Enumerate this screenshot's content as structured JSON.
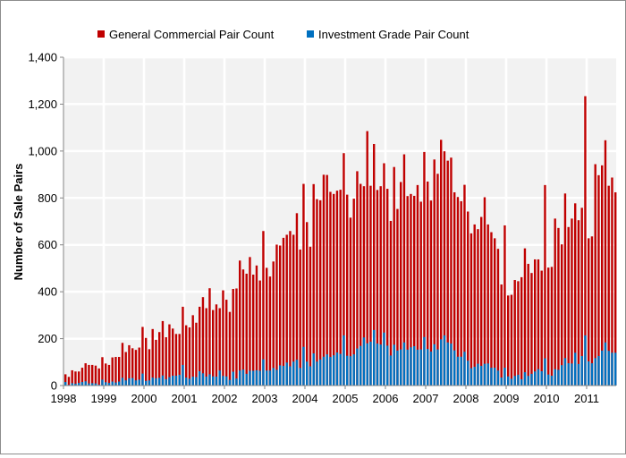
{
  "chart_data": {
    "type": "bar",
    "stacking": "overlay",
    "title": "",
    "xlabel": "",
    "ylabel": "Number of Sale Pairs",
    "ylim": [
      0,
      1400
    ],
    "yticks": [
      0,
      200,
      400,
      600,
      800,
      1000,
      1200,
      1400
    ],
    "ytick_labels": [
      "0",
      "200",
      "400",
      "600",
      "800",
      "1,000",
      "1,200",
      "1,400"
    ],
    "xtick_labels": [
      "1998",
      "1999",
      "2000",
      "2001",
      "2002",
      "2003",
      "2004",
      "2005",
      "2006",
      "2007",
      "2008",
      "2009",
      "2010",
      "2011"
    ],
    "x_start": "1998-01",
    "x_frequency": "monthly",
    "grid": true,
    "legend_position": "top",
    "colors": {
      "general": "#c00000",
      "investment": "#0070c0",
      "plot_bg": "#f2f2f2"
    },
    "series": [
      {
        "name": "General Commercial Pair Count",
        "values": [
          48,
          37,
          65,
          60,
          60,
          76,
          95,
          88,
          88,
          85,
          73,
          121,
          94,
          88,
          120,
          122,
          122,
          182,
          143,
          172,
          159,
          152,
          162,
          250,
          203,
          155,
          241,
          195,
          228,
          275,
          206,
          261,
          243,
          220,
          220,
          336,
          257,
          248,
          300,
          268,
          336,
          377,
          330,
          415,
          322,
          346,
          330,
          406,
          366,
          314,
          412,
          414,
          533,
          495,
          477,
          548,
          473,
          512,
          448,
          659,
          502,
          465,
          529,
          601,
          597,
          630,
          643,
          659,
          643,
          735,
          580,
          860,
          697,
          592,
          859,
          795,
          790,
          899,
          898,
          826,
          817,
          831,
          835,
          991,
          814,
          716,
          797,
          914,
          860,
          850,
          1085,
          852,
          1030,
          834,
          850,
          948,
          839,
          702,
          932,
          753,
          868,
          986,
          808,
          817,
          809,
          855,
          784,
          996,
          870,
          789,
          964,
          903,
          1048,
          999,
          959,
          972,
          824,
          804,
          786,
          856,
          742,
          649,
          687,
          667,
          719,
          803,
          687,
          654,
          628,
          583,
          431,
          683,
          384,
          387,
          450,
          445,
          462,
          585,
          519,
          480,
          538,
          538,
          490,
          855,
          503,
          506,
          712,
          672,
          602,
          819,
          676,
          712,
          777,
          705,
          758,
          1234,
          628,
          636,
          944,
          897,
          939,
          1046,
          852,
          887,
          824
        ]
      },
      {
        "name": "Investment Grade Pair Count",
        "values": [
          15,
          3,
          10,
          8,
          11,
          15,
          18,
          9,
          10,
          9,
          4,
          25,
          14,
          11,
          17,
          13,
          17,
          33,
          22,
          31,
          32,
          22,
          25,
          51,
          20,
          22,
          34,
          31,
          33,
          43,
          27,
          36,
          42,
          42,
          46,
          88,
          34,
          29,
          38,
          36,
          61,
          52,
          38,
          48,
          39,
          38,
          64,
          41,
          39,
          24,
          59,
          30,
          64,
          68,
          50,
          63,
          63,
          65,
          63,
          112,
          64,
          64,
          75,
          67,
          86,
          84,
          98,
          82,
          102,
          110,
          75,
          165,
          102,
          82,
          137,
          102,
          111,
          123,
          133,
          122,
          129,
          141,
          135,
          214,
          127,
          125,
          133,
          158,
          169,
          205,
          180,
          187,
          237,
          179,
          175,
          226,
          170,
          128,
          174,
          149,
          154,
          184,
          153,
          163,
          168,
          153,
          154,
          207,
          156,
          145,
          176,
          154,
          197,
          214,
          184,
          179,
          150,
          123,
          123,
          144,
          106,
          74,
          80,
          93,
          84,
          93,
          94,
          76,
          76,
          64,
          34,
          76,
          39,
          29,
          41,
          46,
          27,
          57,
          41,
          50,
          60,
          70,
          61,
          116,
          47,
          42,
          70,
          67,
          87,
          117,
          95,
          94,
          140,
          92,
          126,
          214,
          103,
          95,
          117,
          126,
          149,
          184,
          148,
          140,
          140
        ]
      }
    ]
  }
}
